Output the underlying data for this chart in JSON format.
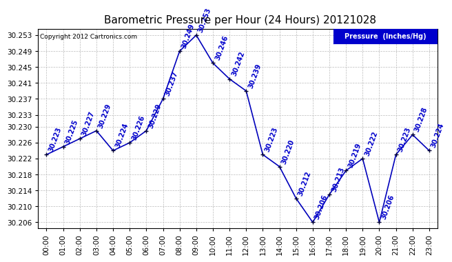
{
  "title": "Barometric Pressure per Hour (24 Hours) 20121028",
  "copyright": "Copyright 2012 Cartronics.com",
  "legend_label": "Pressure  (Inches/Hg)",
  "hours": [
    "00:00",
    "01:00",
    "02:00",
    "03:00",
    "04:00",
    "05:00",
    "06:00",
    "07:00",
    "08:00",
    "09:00",
    "10:00",
    "11:00",
    "12:00",
    "13:00",
    "14:00",
    "15:00",
    "16:00",
    "17:00",
    "18:00",
    "19:00",
    "20:00",
    "21:00",
    "22:00",
    "23:00"
  ],
  "values": [
    30.223,
    30.225,
    30.227,
    30.229,
    30.224,
    30.226,
    30.229,
    30.237,
    30.249,
    30.253,
    30.246,
    30.242,
    30.239,
    30.223,
    30.22,
    30.212,
    30.206,
    30.213,
    30.219,
    30.222,
    30.206,
    30.223,
    30.228,
    30.224
  ],
  "yticks": [
    30.206,
    30.21,
    30.214,
    30.218,
    30.222,
    30.226,
    30.23,
    30.233,
    30.237,
    30.241,
    30.245,
    30.249,
    30.253
  ],
  "ylim_lo": 30.2045,
  "ylim_hi": 30.2545,
  "line_color": "#0000bb",
  "marker_color": "#000033",
  "label_color": "#0000cc",
  "bg_color": "#ffffff",
  "grid_color": "#bbbbbb",
  "title_color": "#000000",
  "legend_bg": "#0000cc",
  "legend_text_color": "#ffffff",
  "copyright_color": "#000000",
  "label_rotation": 70,
  "label_fontsize": 7.0,
  "axis_fontsize": 7.5,
  "title_fontsize": 11
}
